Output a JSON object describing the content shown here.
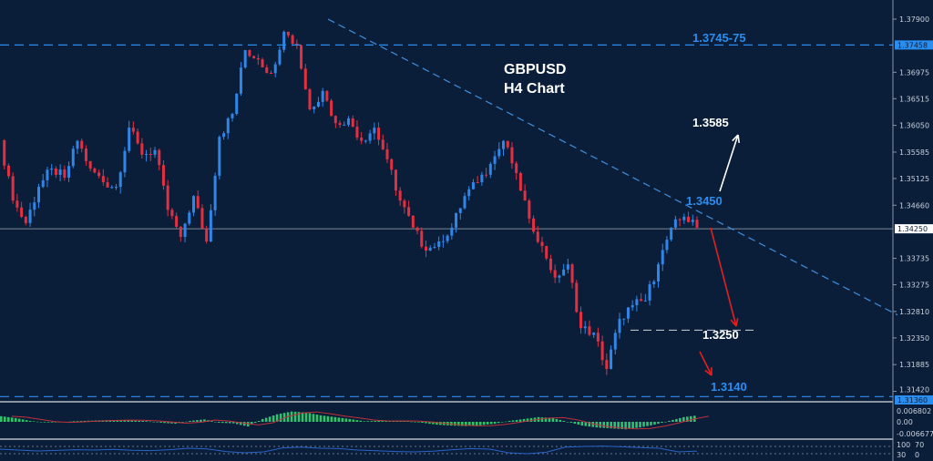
{
  "chart_data": {
    "type": "candlestick",
    "symbol": "GBPUSD",
    "timeframe": "H4 Chart",
    "ylim": [
      1.3132,
      1.381
    ],
    "y_ticks": [
      "1.37900",
      "1.36975",
      "1.36515",
      "1.36050",
      "1.35585",
      "1.35125",
      "1.34660",
      "1.33735",
      "1.33275",
      "1.32810",
      "1.32350",
      "1.31885",
      "1.31420"
    ],
    "current_price": "1.34250",
    "highlight_labels": [
      "1.37458",
      "1.31360"
    ],
    "close_path": [
      1.3579,
      1.3474,
      1.3435,
      1.3498,
      1.353,
      1.3514,
      1.3578,
      1.353,
      1.3506,
      1.3498,
      1.3601,
      1.3554,
      1.3562,
      1.3458,
      1.3411,
      1.3482,
      1.3403,
      1.3585,
      1.3625,
      1.3736,
      1.372,
      1.3696,
      1.3768,
      1.3744,
      1.3633,
      1.3665,
      1.3609,
      1.3617,
      1.3578,
      1.3601,
      1.3546,
      1.3474,
      1.3427,
      1.3387,
      1.3403,
      1.3427,
      1.3482,
      1.3506,
      1.3538,
      1.3578,
      1.3522,
      1.3443,
      1.3395,
      1.334,
      1.3363,
      1.3252,
      1.3244,
      1.3181,
      1.3268,
      1.3292,
      1.33,
      1.3363,
      1.3427,
      1.3446,
      1.3427
    ],
    "levels": {
      "resistance": 1.3745,
      "support": 1.3136,
      "target_1": 1.325
    },
    "trendline": {
      "from": 1.379,
      "to": 1.3275
    },
    "annotations": {
      "resistance_label": "1.3745-75",
      "upside_target": "1.3585",
      "trendline_level": "1.3450",
      "downside_target_1": "1.3250",
      "downside_target_2": "1.3140"
    },
    "colors": {
      "background": "#0b1e39",
      "bull": "#2f86e8",
      "bear": "#e33040",
      "level": "#2a8ef0",
      "trendline": "#3d8fe0"
    },
    "macd": {
      "axis_labels": [
        "0.006802",
        "0.00",
        "-0.006677"
      ],
      "histogram": [
        0.003,
        0.002,
        0.0005,
        -0.0003,
        -0.0003,
        0.0003,
        0.0006,
        0.0008,
        0.001,
        0.0007,
        0.0004,
        -0.0005,
        -0.001,
        0.0005,
        0.0013,
        -0.0005,
        -0.0008,
        -0.0025,
        0.0015,
        0.004,
        0.0055,
        0.005,
        0.0035,
        0.0025,
        0.0015,
        0.0003,
        0.0005,
        0.0005,
        0.0003,
        -0.0005,
        -0.0015,
        -0.002,
        -0.0023,
        -0.0018,
        -0.001,
        0.0005,
        0.0015,
        0.0025,
        0.002,
        0,
        -0.002,
        -0.003,
        -0.0035,
        -0.004,
        -0.003,
        -0.0015,
        0.0005,
        0.0025,
        0.0035
      ]
    },
    "rsi": {
      "axis_labels": [
        "100",
        "70",
        "30",
        "0"
      ],
      "values": [
        55,
        50,
        45,
        48,
        52,
        50,
        54,
        49,
        47,
        52,
        60,
        56,
        42,
        35,
        40,
        62,
        66,
        60,
        58,
        50,
        46,
        42,
        40,
        44,
        52,
        58,
        55,
        35,
        30,
        38,
        66,
        70,
        72,
        68,
        64,
        60,
        40,
        44
      ]
    }
  }
}
